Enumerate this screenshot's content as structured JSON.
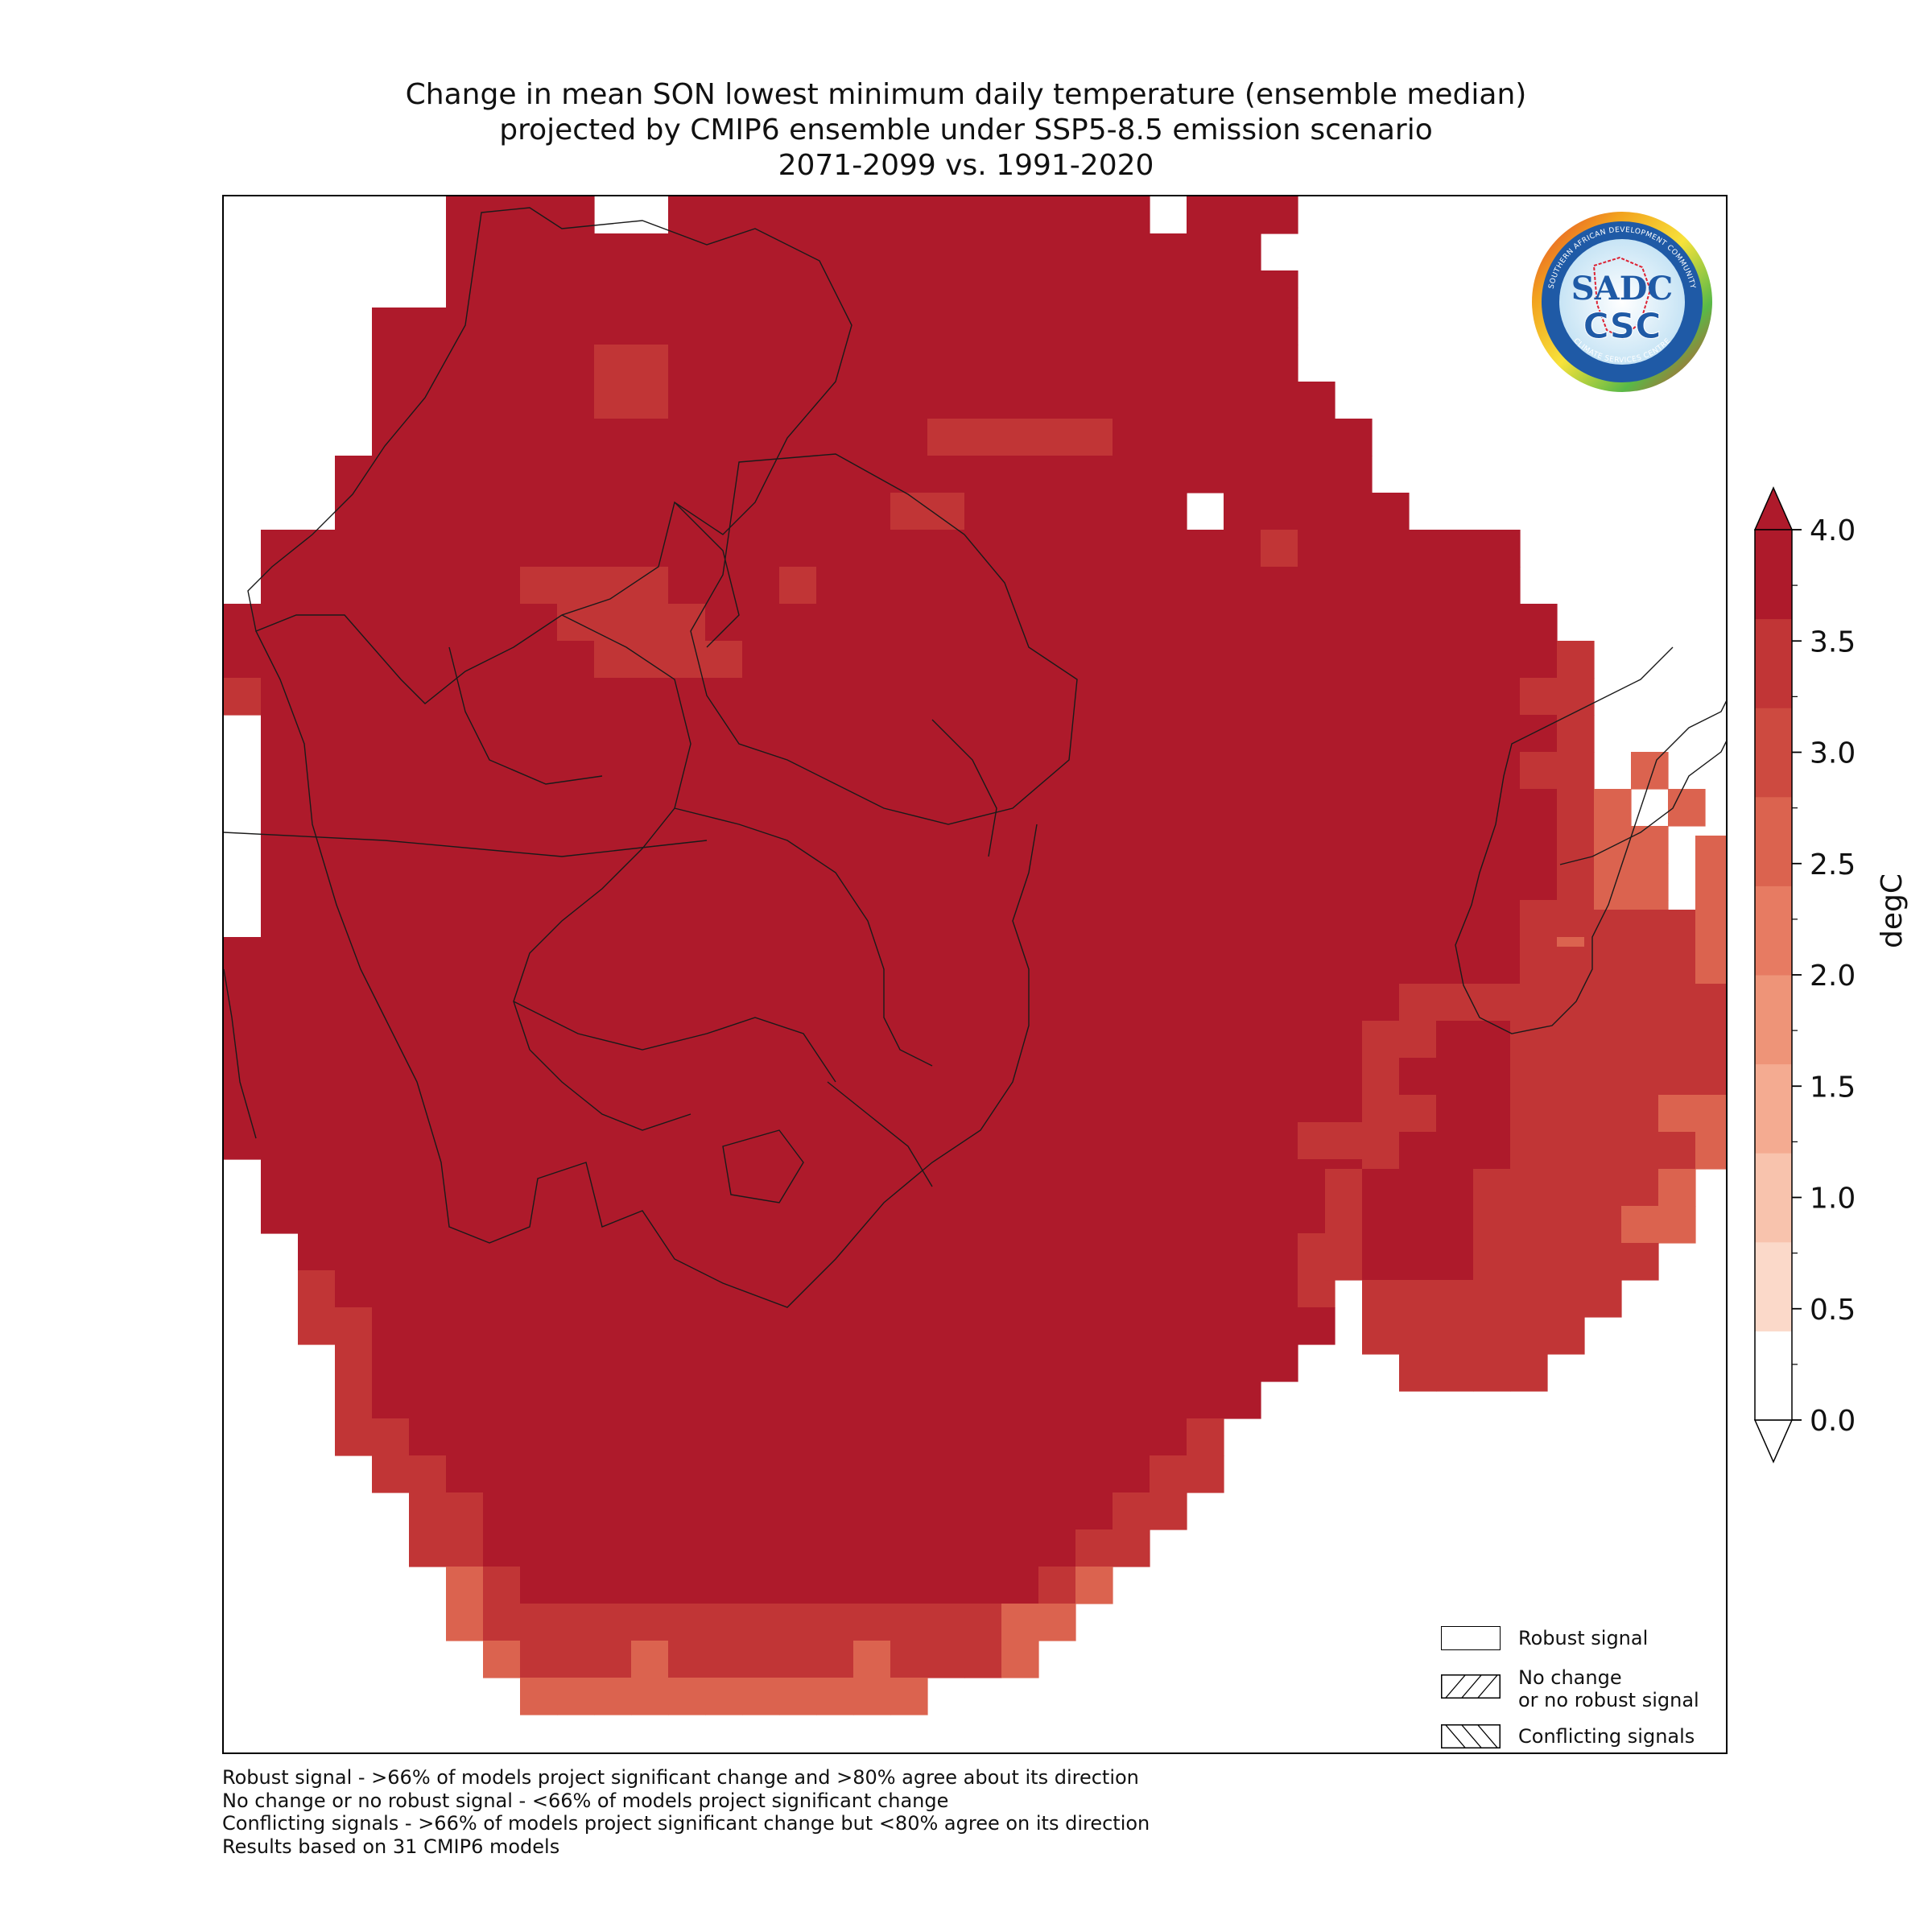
{
  "title": {
    "line1": "Change in mean SON lowest minimum daily temperature (ensemble median)",
    "line2": "projected by CMIP6 ensemble under SSP5-8.5 emission scenario",
    "line3": "2071-2099 vs. 1991-2020"
  },
  "colorbar": {
    "label": "degC",
    "ticks": [
      "0.0",
      "0.5",
      "1.0",
      "1.5",
      "2.0",
      "2.5",
      "3.0",
      "3.5",
      "4.0"
    ],
    "range": [
      0.0,
      4.0
    ],
    "extend": "both",
    "colors": [
      "#fdece4",
      "#fbd9c9",
      "#f8c3ad",
      "#f4ab91",
      "#ee9478",
      "#e77b62",
      "#db634f",
      "#cd4a40",
      "#c13536",
      "#ae1a2b"
    ]
  },
  "legend": {
    "items": [
      {
        "label": "Robust signal"
      },
      {
        "label_line1": "No change",
        "label_line2": "or no robust signal"
      },
      {
        "label": "Conflicting signals"
      }
    ]
  },
  "logo": {
    "main_text": "SADC",
    "sub_text": "CSC",
    "ring_top": "SOUTHERN AFRICAN DEVELOPMENT COMMUNITY",
    "ring_bottom": "CLIMATE SERVICES CENTRE"
  },
  "notes": [
    "Robust signal - >66% of models project significant change and >80% agree about its direction",
    "No change or no robust signal - <66% of models project significant change",
    "Conflicting signals - >66% of models project significant change but <80% agree on its direction",
    "Results based on 31 CMIP6 models"
  ],
  "map_data": {
    "unit": "degC",
    "grid_rows": [
      "......aabb..bbaaaaaaaaaaa.aaa.....",
      "......aaaaabbbaaaaaaaaaaaabb......",
      "......aaaaabbbbbbbbbbbbbbbbbb.....",
      "....bbbbbbbbbbbbbbbbbbbbbbbbb.....",
      "....bbbbbbccbbbbbbbbbbbbbbbbb.....",
      "....bbbbbbccbbbbbbbbbbbbbbbbbb....",
      "....bbbbbbbbbbbbbbbcccccbbbbbbb...",
      "...bbbbbbbbbbbbbbbbbbbbbbbbbbbb...",
      "...bbbbbbbbbbbbbbbccbbbbbb.bbbbb..",
      ".bbbbbbbbbbbbbbbbbbbbbbbbbbbcbbbbbb",
      ".bbbbbbbccccbbbcbbbbbbbbbbbbbbbbbbb",
      "aaabbbbbbccccbbbbbbbbbbbbbbbbbbbbbbb",
      "aabbbbbbbbccccbbbbbbbbbbbbbbbbbbbbbbc",
      "cbbbbbbbbbbbbbbbbbbbbbbbbbbbbbbbbbbcc",
      ".bbbbbbbbbbbbbbbbbbbbbbbbbbbbbbbbbbbc",
      ".bbbbbbbbbbbbbbbbbbbbbbbbbbbbbbbbbbcc.d",
      ".bbbbbbbbaaaaabbbbbbbbbbbbbbbbbbbbbbcd.d",
      ".bbbbbaaaaaaaaaabbbbbbbbbbbbbbbbbbbbcdd",
      ".bbbbaaaaaaaaaaaaaaaaaaaaaaaaabbbbbbcdd",
      ".bbbaaaaaaaaaaaaaaaaaaaaaaaaaabbbbbccdd",
      "aaaaaaaaaaaaaaaaaaaaaaaaaaaaaabbbbbcdd",
      "aaaaaaaaaaaaaaaaaaaaaaaaaaaaabbbbbbcdd",
      "aaaaaaaaaaaaaaaaaaaaaaaabbbbbbbbbbbccd",
      "aaaaaaaaaaaaaaaaaaaaaabbbbbbbbbbbbbcc",
      "aaaaaaaaaaaaaaaaaaaaabbbbbbbbbbccccc",
      "aaaaaaaaaaaaaaaaaaaaabbbbbbbbccccc",
      ".aaaaaaaaaaaaaaaaaaaaabbbbbbbbbbc",
      ".baaaaaaaaaaaaaaaaaaaabbbbbbbbbb",
      "..bbaaaaaaaaaaaaaaaaabbbbbbbbcc",
      "..cbaaaaaaaaaaaaaaaaaaabbbbbbc",
      "..ccbaaaaaaaaaaaaaaaaaaabbbbbb",
      "...cbaaaaaaaaaaaaaaaaaaabbbbb",
      "...cbbbaaaaaaaaaaaaaaaabbbbb",
      "...ccbbbbaaaaaaaaaaaabbbbbc",
      "....ccbbbbaaaaaaaaaaabbbbcc",
      ".....ccbbbbbbaabbbbbbbbbcc",
      ".....ccbbbbbbbbbbbbbbbbcc",
      "......dcbbbbbbbbbbbbbbcd",
      "......dccccccccccccccdd",
      ".......dcccdcccccdcccd",
      "........ddddddddddd"
    ],
    "madagascar_rows": [
      "..........dd",
      "..........dd",
      ".......cccdd",
      "......ccccdd",
      "..cccccccccd",
      ".ccbbccccccd",
      ".cbbbccccccd",
      ".ccbbccccdd",
      ".cbbbcccccd",
      "cbbbcccccd",
      "cbbbccccdd",
      "cbbbccccc",
      ".ccccccc",
      ".cccccc",
      "..cccc"
    ],
    "legend_key": {
      "a": "4.0",
      "b": "3.75",
      "c": "3.25",
      "d": "2.75",
      ".": "none"
    }
  }
}
